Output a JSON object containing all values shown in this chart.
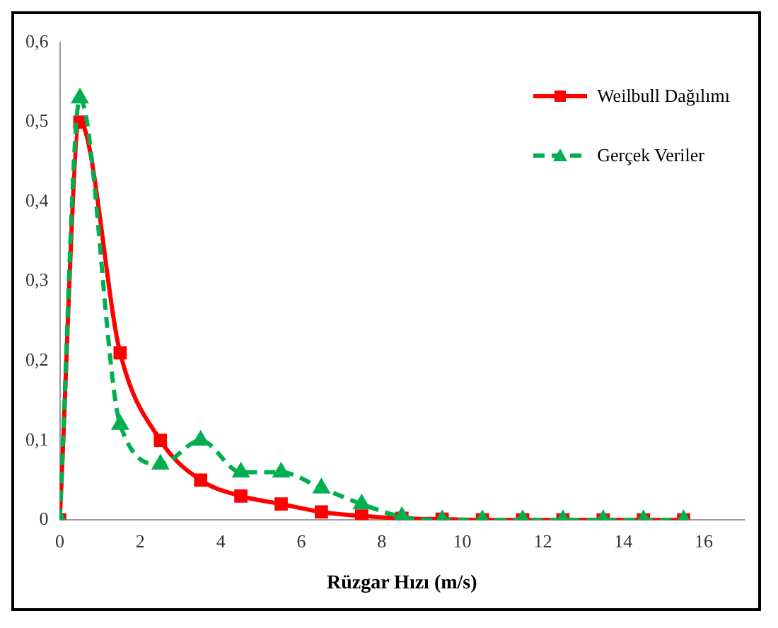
{
  "chart_data": {
    "type": "line",
    "xlabel": "Rüzgar Hızı (m/s)",
    "x": [
      0,
      0.5,
      1.5,
      2.5,
      3.5,
      4.5,
      5.5,
      6.5,
      7.5,
      8.5,
      9.5,
      10.5,
      11.5,
      12.5,
      13.5,
      14.5,
      15.5
    ],
    "series": [
      {
        "name": "Weilbull Dağılımı",
        "color": "#ff0000",
        "marker": "square",
        "line_style": "solid",
        "values": [
          0,
          0.5,
          0.21,
          0.1,
          0.05,
          0.03,
          0.02,
          0.01,
          0.005,
          0.002,
          0.001,
          0,
          0,
          0,
          0,
          0,
          0
        ]
      },
      {
        "name": "Gerçek Veriler",
        "color": "#00b050",
        "marker": "triangle",
        "line_style": "dashed",
        "values": [
          0,
          0.53,
          0.12,
          0.07,
          0.1,
          0.06,
          0.06,
          0.04,
          0.02,
          0.004,
          0,
          0,
          0,
          0,
          0,
          0,
          0
        ]
      }
    ],
    "xlim": [
      0,
      17
    ],
    "xticks": [
      0,
      2,
      4,
      6,
      8,
      10,
      12,
      14,
      16
    ],
    "ylim": [
      0,
      0.6
    ],
    "yticks": [
      {
        "value": 0,
        "label": "0"
      },
      {
        "value": 0.1,
        "label": "0,1"
      },
      {
        "value": 0.2,
        "label": "0,2"
      },
      {
        "value": 0.3,
        "label": "0,3"
      },
      {
        "value": 0.4,
        "label": "0,4"
      },
      {
        "value": 0.5,
        "label": "0,5"
      },
      {
        "value": 0.6,
        "label": "0,6"
      }
    ],
    "grid": false,
    "legend": "top right"
  }
}
